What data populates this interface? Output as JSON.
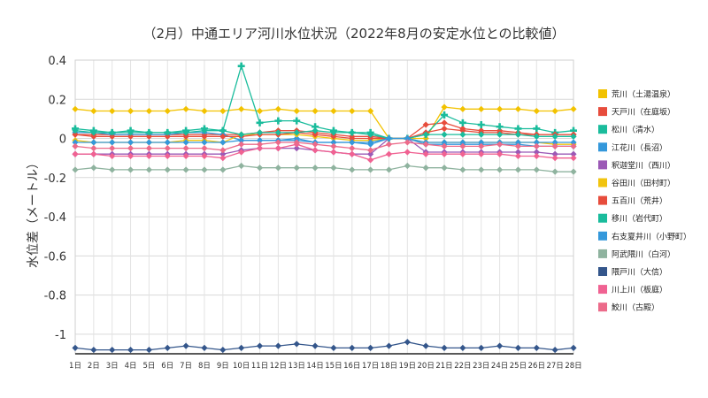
{
  "chart_data": {
    "type": "line",
    "title": "（2月）中通エリア河川水位状況（2022年8月の安定水位との比較値）",
    "xlabel": "",
    "ylabel": "水位差（メートル）",
    "ylim": [
      -1.1,
      0.4
    ],
    "yticks": [
      0.4,
      0.2,
      0,
      -0.2,
      -0.4,
      -0.6,
      -0.8,
      -1
    ],
    "ytick_labels": [
      "0.4",
      "0.2",
      "0",
      "-0.2",
      "-0.4",
      "-0.6",
      "-0.8",
      "-1"
    ],
    "categories": [
      "1日",
      "2日",
      "3日",
      "4日",
      "5日",
      "6日",
      "7日",
      "8日",
      "9日",
      "10日",
      "11日",
      "12日",
      "13日",
      "14日",
      "15日",
      "16日",
      "17日",
      "18日",
      "19日",
      "20日",
      "21日",
      "22日",
      "23日",
      "24日",
      "25日",
      "26日",
      "27日",
      "28日"
    ],
    "grid": true,
    "legend_position": "right",
    "series": [
      {
        "name": "荒川（土湯温泉）",
        "color": "#f2c200",
        "marker": "diamond",
        "values": [
          0.15,
          0.14,
          0.14,
          0.14,
          0.14,
          0.14,
          0.15,
          0.14,
          0.14,
          0.15,
          0.14,
          0.15,
          0.14,
          0.14,
          0.14,
          0.14,
          0.14,
          0.0,
          0.0,
          0.0,
          0.16,
          0.15,
          0.15,
          0.15,
          0.15,
          0.14,
          0.14,
          0.15
        ]
      },
      {
        "name": "天戸川（在庭坂）",
        "color": "#e74c3c",
        "marker": "diamond",
        "values": [
          0.02,
          0.02,
          0.02,
          0.02,
          0.02,
          0.02,
          0.02,
          0.02,
          0.02,
          0.02,
          0.03,
          0.04,
          0.04,
          0.03,
          0.02,
          0.01,
          0.01,
          0.0,
          0.0,
          0.07,
          0.08,
          0.05,
          0.04,
          0.04,
          0.03,
          0.02,
          0.02,
          0.02
        ]
      },
      {
        "name": "松川（清水）",
        "color": "#1abc9c",
        "marker": "plus",
        "values": [
          0.05,
          0.04,
          0.03,
          0.04,
          0.03,
          0.03,
          0.04,
          0.05,
          0.04,
          0.37,
          0.08,
          0.09,
          0.09,
          0.06,
          0.04,
          0.03,
          0.03,
          0.0,
          0.0,
          0.02,
          0.12,
          0.08,
          0.07,
          0.06,
          0.05,
          0.05,
          0.03,
          0.04
        ]
      },
      {
        "name": "江花川（長沼）",
        "color": "#3498db",
        "marker": "diamond",
        "values": [
          0.03,
          0.03,
          0.02,
          0.02,
          0.02,
          0.02,
          0.03,
          0.03,
          0.02,
          -0.01,
          -0.01,
          -0.01,
          0.0,
          -0.02,
          -0.02,
          -0.02,
          -0.03,
          0.0,
          0.0,
          -0.03,
          -0.03,
          -0.03,
          -0.03,
          -0.03,
          -0.03,
          -0.04,
          -0.04,
          -0.04
        ]
      },
      {
        "name": "釈迦堂川（西川）",
        "color": "#9b59b6",
        "marker": "diamond",
        "values": [
          -0.08,
          -0.08,
          -0.08,
          -0.08,
          -0.08,
          -0.08,
          -0.08,
          -0.08,
          -0.08,
          -0.06,
          -0.05,
          -0.05,
          -0.05,
          -0.06,
          -0.07,
          -0.08,
          -0.08,
          0.0,
          0.0,
          -0.07,
          -0.07,
          -0.07,
          -0.07,
          -0.07,
          -0.07,
          -0.07,
          -0.08,
          -0.08
        ]
      },
      {
        "name": "谷田川（田村町）",
        "color": "#f1c40f",
        "marker": "diamond",
        "values": [
          -0.01,
          -0.02,
          -0.02,
          -0.02,
          -0.02,
          -0.02,
          -0.01,
          -0.01,
          -0.02,
          0.02,
          0.02,
          0.02,
          0.02,
          0.01,
          0.0,
          -0.01,
          -0.01,
          0.0,
          0.0,
          -0.02,
          -0.02,
          -0.02,
          -0.02,
          -0.02,
          -0.02,
          -0.02,
          -0.03,
          -0.03
        ]
      },
      {
        "name": "五百川（荒井）",
        "color": "#e74c3c",
        "marker": "diamond",
        "values": [
          0.02,
          0.01,
          0.01,
          0.01,
          0.01,
          0.01,
          0.01,
          0.01,
          0.01,
          0.01,
          0.02,
          0.02,
          0.03,
          0.02,
          0.01,
          0.0,
          0.0,
          0.0,
          0.0,
          0.03,
          0.05,
          0.04,
          0.03,
          0.03,
          0.02,
          0.02,
          0.02,
          0.02
        ]
      },
      {
        "name": "移川（岩代町）",
        "color": "#1abc9c",
        "marker": "diamond",
        "values": [
          0.04,
          0.03,
          0.03,
          0.03,
          0.03,
          0.03,
          0.03,
          0.04,
          0.04,
          0.02,
          0.03,
          0.03,
          0.03,
          0.04,
          0.03,
          0.03,
          0.02,
          0.0,
          0.0,
          0.02,
          0.02,
          0.02,
          0.02,
          0.02,
          0.02,
          0.01,
          0.01,
          0.01
        ]
      },
      {
        "name": "右支夏井川（小野町）",
        "color": "#3498db",
        "marker": "diamond",
        "values": [
          -0.02,
          -0.02,
          -0.02,
          -0.02,
          -0.02,
          -0.02,
          -0.02,
          -0.02,
          -0.02,
          -0.01,
          -0.01,
          -0.01,
          -0.01,
          -0.02,
          -0.02,
          -0.02,
          -0.02,
          0.0,
          0.0,
          -0.02,
          -0.02,
          -0.02,
          -0.02,
          -0.02,
          -0.02,
          -0.02,
          -0.02,
          -0.02
        ]
      },
      {
        "name": "阿武隈川（白河）",
        "color": "#8fb39f",
        "marker": "diamond",
        "values": [
          -0.16,
          -0.15,
          -0.16,
          -0.16,
          -0.16,
          -0.16,
          -0.16,
          -0.16,
          -0.16,
          -0.14,
          -0.15,
          -0.15,
          -0.15,
          -0.15,
          -0.15,
          -0.16,
          -0.16,
          -0.16,
          -0.14,
          -0.15,
          -0.15,
          -0.16,
          -0.16,
          -0.16,
          -0.16,
          -0.16,
          -0.17,
          -0.17
        ]
      },
      {
        "name": "隈戸川（大信）",
        "color": "#34568b",
        "marker": "diamond",
        "values": [
          -1.07,
          -1.08,
          -1.08,
          -1.08,
          -1.08,
          -1.07,
          -1.06,
          -1.07,
          -1.08,
          -1.07,
          -1.06,
          -1.06,
          -1.05,
          -1.06,
          -1.07,
          -1.07,
          -1.07,
          -1.06,
          -1.04,
          -1.06,
          -1.07,
          -1.07,
          -1.07,
          -1.06,
          -1.07,
          -1.07,
          -1.08,
          -1.07
        ]
      },
      {
        "name": "川上川（板庭）",
        "color": "#f06292",
        "marker": "diamond",
        "values": [
          -0.08,
          -0.08,
          -0.09,
          -0.09,
          -0.09,
          -0.09,
          -0.09,
          -0.09,
          -0.1,
          -0.07,
          -0.05,
          -0.05,
          -0.03,
          -0.06,
          -0.07,
          -0.08,
          -0.11,
          -0.08,
          -0.07,
          -0.08,
          -0.08,
          -0.08,
          -0.08,
          -0.08,
          -0.09,
          -0.09,
          -0.1,
          -0.1
        ]
      },
      {
        "name": "鮫川（古殿）",
        "color": "#ec6b8a",
        "marker": "diamond",
        "values": [
          -0.04,
          -0.05,
          -0.05,
          -0.05,
          -0.05,
          -0.05,
          -0.05,
          -0.05,
          -0.06,
          -0.03,
          -0.03,
          -0.02,
          -0.02,
          -0.03,
          -0.04,
          -0.05,
          -0.06,
          -0.03,
          -0.02,
          -0.03,
          -0.04,
          -0.04,
          -0.04,
          -0.03,
          -0.04,
          -0.04,
          -0.04,
          -0.04
        ]
      }
    ]
  }
}
